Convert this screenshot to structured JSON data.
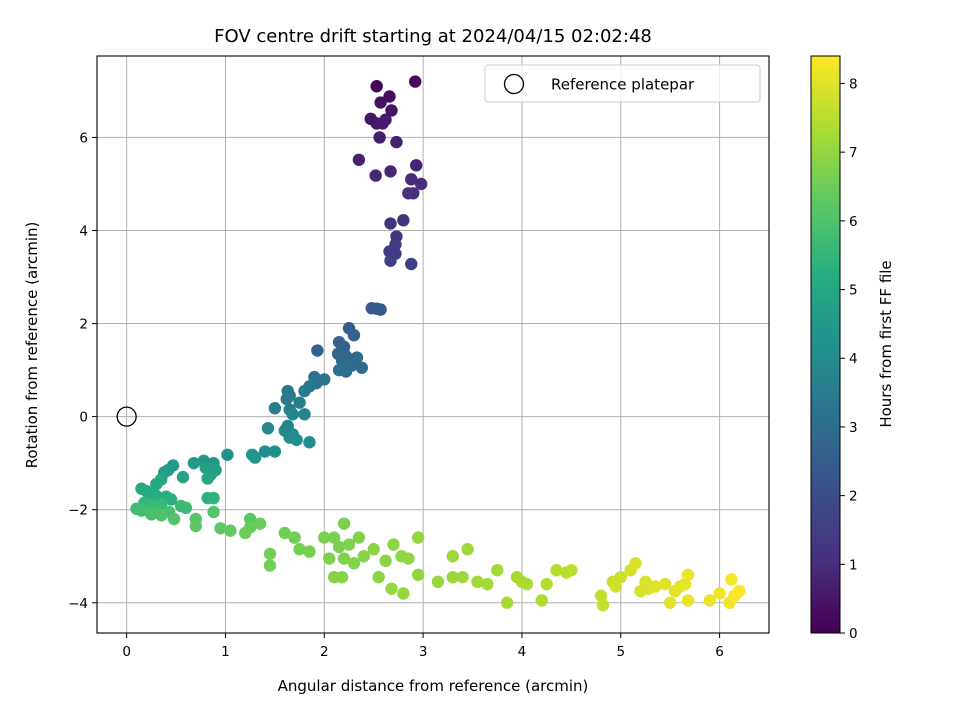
{
  "chart_data": {
    "type": "scatter",
    "title": "FOV centre drift starting at 2024/04/15 02:02:48",
    "xlabel": "Angular distance from reference (arcmin)",
    "ylabel": "Rotation from reference (arcmin)",
    "xlim": [
      -0.3,
      6.5
    ],
    "ylim": [
      -4.65,
      7.75
    ],
    "xticks": [
      0,
      1,
      2,
      3,
      4,
      5,
      6
    ],
    "yticks": [
      -4,
      -2,
      0,
      2,
      4,
      6
    ],
    "grid": true,
    "legend": {
      "position": "upper right",
      "entries": [
        "Reference platepar"
      ]
    },
    "reference_point": {
      "x": 0,
      "y": 0,
      "label": "Reference platepar"
    },
    "colorbar": {
      "label": "Hours from first FF file",
      "colormap": "viridis",
      "min": 0,
      "max": 8.4,
      "ticks": [
        0,
        1,
        2,
        3,
        4,
        5,
        6,
        7,
        8
      ]
    },
    "points": [
      [
        2.53,
        7.1,
        0.1
      ],
      [
        2.92,
        7.2,
        0.2
      ],
      [
        2.66,
        6.88,
        0.3
      ],
      [
        2.57,
        6.75,
        0.35
      ],
      [
        2.68,
        6.58,
        0.4
      ],
      [
        2.47,
        6.4,
        0.45
      ],
      [
        2.53,
        6.3,
        0.5
      ],
      [
        2.62,
        6.38,
        0.55
      ],
      [
        2.59,
        6.3,
        0.6
      ],
      [
        2.56,
        6.0,
        0.65
      ],
      [
        2.73,
        5.9,
        0.7
      ],
      [
        2.35,
        5.52,
        0.75
      ],
      [
        2.93,
        5.4,
        0.8
      ],
      [
        2.52,
        5.18,
        0.85
      ],
      [
        2.67,
        5.27,
        0.9
      ],
      [
        2.88,
        5.1,
        0.95
      ],
      [
        2.98,
        5.0,
        1.0
      ],
      [
        2.9,
        4.8,
        1.05
      ],
      [
        2.85,
        4.8,
        1.1
      ],
      [
        2.8,
        4.22,
        1.2
      ],
      [
        2.67,
        4.15,
        1.25
      ],
      [
        2.73,
        3.87,
        1.3
      ],
      [
        2.72,
        3.7,
        1.35
      ],
      [
        2.66,
        3.55,
        1.4
      ],
      [
        2.72,
        3.5,
        1.45
      ],
      [
        2.67,
        3.35,
        1.5
      ],
      [
        2.88,
        3.28,
        1.55
      ],
      [
        2.48,
        2.33,
        2.3
      ],
      [
        2.53,
        2.32,
        2.35
      ],
      [
        2.57,
        2.3,
        2.4
      ],
      [
        2.25,
        1.9,
        2.5
      ],
      [
        2.3,
        1.75,
        2.55
      ],
      [
        2.15,
        1.6,
        2.6
      ],
      [
        2.2,
        1.5,
        2.65
      ],
      [
        1.93,
        1.42,
        2.7
      ],
      [
        2.14,
        1.35,
        2.75
      ],
      [
        2.22,
        1.3,
        2.8
      ],
      [
        2.33,
        1.27,
        2.85
      ],
      [
        2.18,
        1.2,
        2.9
      ],
      [
        2.28,
        1.1,
        2.95
      ],
      [
        2.38,
        1.05,
        3.0
      ],
      [
        2.22,
        0.97,
        3.05
      ],
      [
        2.15,
        1.0,
        3.1
      ],
      [
        1.9,
        0.85,
        3.15
      ],
      [
        2.0,
        0.8,
        3.2
      ],
      [
        1.92,
        0.72,
        3.25
      ],
      [
        1.85,
        0.65,
        3.3
      ],
      [
        1.63,
        0.55,
        3.35
      ],
      [
        1.65,
        0.45,
        3.4
      ],
      [
        1.8,
        0.55,
        3.45
      ],
      [
        1.62,
        0.38,
        3.5
      ],
      [
        1.75,
        0.3,
        3.55
      ],
      [
        1.5,
        0.18,
        3.6
      ],
      [
        1.65,
        0.15,
        3.65
      ],
      [
        1.8,
        0.05,
        3.7
      ],
      [
        1.68,
        0.05,
        3.75
      ],
      [
        1.63,
        -0.2,
        3.8
      ],
      [
        1.43,
        -0.25,
        3.85
      ],
      [
        1.6,
        -0.3,
        3.9
      ],
      [
        1.68,
        -0.38,
        3.95
      ],
      [
        1.65,
        -0.45,
        4.0
      ],
      [
        1.85,
        -0.55,
        4.05
      ],
      [
        1.72,
        -0.5,
        4.1
      ],
      [
        1.4,
        -0.75,
        4.15
      ],
      [
        1.5,
        -0.75,
        4.2
      ],
      [
        1.02,
        -0.82,
        4.25
      ],
      [
        1.27,
        -0.82,
        4.3
      ],
      [
        1.3,
        -0.88,
        4.35
      ],
      [
        0.78,
        -0.95,
        4.4
      ],
      [
        0.88,
        -1.0,
        4.45
      ],
      [
        0.68,
        -1.0,
        4.5
      ],
      [
        0.47,
        -1.05,
        4.55
      ],
      [
        0.42,
        -1.15,
        4.6
      ],
      [
        0.38,
        -1.2,
        4.65
      ],
      [
        0.8,
        -1.1,
        4.7
      ],
      [
        0.9,
        -1.15,
        4.75
      ],
      [
        0.85,
        -1.25,
        4.8
      ],
      [
        0.57,
        -1.3,
        4.85
      ],
      [
        0.82,
        -1.33,
        4.9
      ],
      [
        0.35,
        -1.35,
        4.95
      ],
      [
        0.3,
        -1.45,
        5.0
      ],
      [
        0.15,
        -1.55,
        5.05
      ],
      [
        0.2,
        -1.6,
        5.1
      ],
      [
        0.25,
        -1.65,
        5.15
      ],
      [
        0.3,
        -1.7,
        5.2
      ],
      [
        0.4,
        -1.72,
        5.25
      ],
      [
        0.45,
        -1.78,
        5.3
      ],
      [
        0.82,
        -1.75,
        5.35
      ],
      [
        0.88,
        -1.75,
        5.4
      ],
      [
        0.18,
        -1.85,
        5.45
      ],
      [
        0.22,
        -1.9,
        5.5
      ],
      [
        0.35,
        -1.88,
        5.55
      ],
      [
        0.27,
        -1.92,
        5.6
      ],
      [
        0.55,
        -1.92,
        5.65
      ],
      [
        0.6,
        -1.96,
        5.7
      ],
      [
        0.1,
        -1.98,
        5.75
      ],
      [
        0.15,
        -2.02,
        5.8
      ],
      [
        0.3,
        -2.05,
        5.85
      ],
      [
        0.43,
        -2.05,
        5.9
      ],
      [
        0.25,
        -2.1,
        5.95
      ],
      [
        0.35,
        -2.12,
        6.0
      ],
      [
        0.48,
        -2.2,
        6.05
      ],
      [
        0.88,
        -2.05,
        6.1
      ],
      [
        0.7,
        -2.2,
        6.15
      ],
      [
        1.25,
        -2.2,
        6.2
      ],
      [
        0.7,
        -2.35,
        6.25
      ],
      [
        0.95,
        -2.4,
        6.3
      ],
      [
        1.05,
        -2.45,
        6.35
      ],
      [
        1.25,
        -2.38,
        6.4
      ],
      [
        1.35,
        -2.3,
        6.45
      ],
      [
        1.2,
        -2.5,
        6.5
      ],
      [
        1.6,
        -2.5,
        6.52
      ],
      [
        1.7,
        -2.6,
        6.54
      ],
      [
        1.45,
        -2.95,
        6.56
      ],
      [
        1.45,
        -3.2,
        6.58
      ],
      [
        1.75,
        -2.85,
        6.6
      ],
      [
        1.85,
        -2.9,
        6.62
      ],
      [
        2.0,
        -2.6,
        6.64
      ],
      [
        2.1,
        -2.6,
        6.66
      ],
      [
        2.2,
        -2.3,
        6.68
      ],
      [
        2.15,
        -2.8,
        6.7
      ],
      [
        2.25,
        -2.75,
        6.72
      ],
      [
        2.05,
        -3.05,
        6.74
      ],
      [
        2.2,
        -3.05,
        6.76
      ],
      [
        2.35,
        -2.6,
        6.78
      ],
      [
        2.3,
        -3.15,
        6.8
      ],
      [
        2.1,
        -3.45,
        6.82
      ],
      [
        2.18,
        -3.45,
        6.84
      ],
      [
        2.4,
        -3.0,
        6.86
      ],
      [
        2.5,
        -2.85,
        6.88
      ],
      [
        2.55,
        -3.45,
        6.9
      ],
      [
        2.62,
        -3.1,
        6.92
      ],
      [
        2.7,
        -2.75,
        6.94
      ],
      [
        2.78,
        -3.0,
        6.96
      ],
      [
        2.85,
        -3.05,
        6.98
      ],
      [
        2.95,
        -3.4,
        7.0
      ],
      [
        2.95,
        -2.6,
        7.02
      ],
      [
        2.68,
        -3.7,
        7.04
      ],
      [
        2.8,
        -3.8,
        7.06
      ],
      [
        3.15,
        -3.55,
        7.08
      ],
      [
        3.3,
        -3.45,
        7.1
      ],
      [
        3.3,
        -3.0,
        7.12
      ],
      [
        3.45,
        -2.85,
        7.14
      ],
      [
        3.4,
        -3.45,
        7.16
      ],
      [
        3.55,
        -3.55,
        7.18
      ],
      [
        3.65,
        -3.6,
        7.2
      ],
      [
        3.75,
        -3.3,
        7.22
      ],
      [
        3.85,
        -4.0,
        7.24
      ],
      [
        3.95,
        -3.45,
        7.26
      ],
      [
        4.05,
        -3.6,
        7.28
      ],
      [
        4.0,
        -3.55,
        7.3
      ],
      [
        4.2,
        -3.95,
        7.35
      ],
      [
        4.25,
        -3.6,
        7.4
      ],
      [
        4.35,
        -3.3,
        7.45
      ],
      [
        4.45,
        -3.35,
        7.5
      ],
      [
        4.5,
        -3.3,
        7.55
      ],
      [
        4.8,
        -3.85,
        7.6
      ],
      [
        4.82,
        -4.05,
        7.65
      ],
      [
        4.92,
        -3.55,
        7.7
      ],
      [
        5.0,
        -3.45,
        7.75
      ],
      [
        4.95,
        -3.65,
        7.8
      ],
      [
        5.1,
        -3.3,
        7.85
      ],
      [
        5.15,
        -3.15,
        7.9
      ],
      [
        5.2,
        -3.75,
        7.92
      ],
      [
        5.25,
        -3.55,
        7.94
      ],
      [
        5.28,
        -3.7,
        7.96
      ],
      [
        5.35,
        -3.65,
        7.98
      ],
      [
        5.45,
        -3.6,
        8.0
      ],
      [
        5.5,
        -4.0,
        8.02
      ],
      [
        5.55,
        -3.75,
        8.04
      ],
      [
        5.6,
        -3.65,
        8.06
      ],
      [
        5.65,
        -3.6,
        8.08
      ],
      [
        5.68,
        -3.4,
        8.1
      ],
      [
        5.68,
        -3.95,
        8.12
      ],
      [
        5.9,
        -3.95,
        8.15
      ],
      [
        6.0,
        -3.8,
        8.2
      ],
      [
        6.1,
        -4.0,
        8.25
      ],
      [
        6.12,
        -3.5,
        8.3
      ],
      [
        6.15,
        -3.85,
        8.35
      ],
      [
        6.2,
        -3.75,
        8.4
      ]
    ]
  }
}
